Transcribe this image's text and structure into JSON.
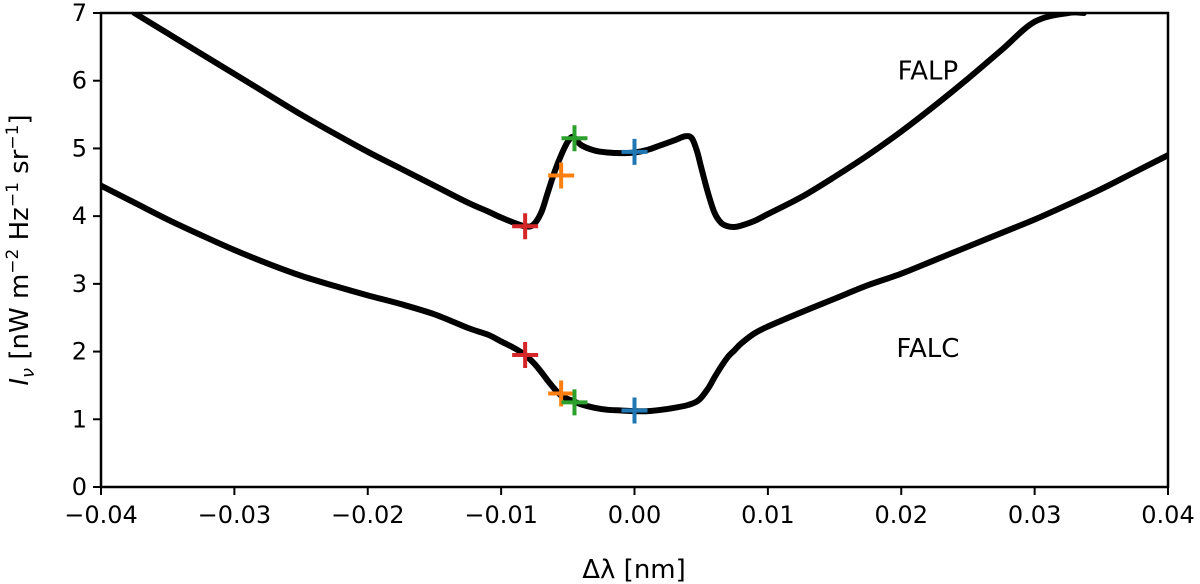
{
  "chart_data": {
    "type": "line",
    "title": "",
    "xlabel": "Δλ [nm]",
    "ylabel": {
      "symbol": "I",
      "subscript": "ν",
      "units_prefix": " [nW m",
      "exp1": "−2",
      "units_mid": " Hz",
      "exp2": "−1",
      "units_mid2": " sr",
      "exp3": "−1",
      "units_suffix": "]"
    },
    "xlim": [
      -0.04,
      0.04
    ],
    "ylim": [
      0,
      7
    ],
    "xticks": [
      -0.04,
      -0.03,
      -0.02,
      -0.01,
      0.0,
      0.01,
      0.02,
      0.03,
      0.04
    ],
    "xtick_labels": [
      "−0.04",
      "−0.03",
      "−0.02",
      "−0.01",
      "0.00",
      "0.01",
      "0.02",
      "0.03",
      "0.04"
    ],
    "yticks": [
      0,
      1,
      2,
      3,
      4,
      5,
      6,
      7
    ],
    "ytick_labels": [
      "0",
      "1",
      "2",
      "3",
      "4",
      "5",
      "6",
      "7"
    ],
    "series": [
      {
        "name": "FALP",
        "color": "#000000",
        "x": [
          -0.0375,
          -0.035,
          -0.0325,
          -0.03,
          -0.0275,
          -0.025,
          -0.0225,
          -0.02,
          -0.0175,
          -0.015,
          -0.0125,
          -0.011,
          -0.01,
          -0.009,
          -0.0082,
          -0.0076,
          -0.007,
          -0.0065,
          -0.006,
          -0.0055,
          -0.005,
          -0.0046,
          -0.004,
          -0.003,
          -0.002,
          -0.001,
          0.0,
          0.001,
          0.002,
          0.003,
          0.0038,
          0.0043,
          0.0047,
          0.005,
          0.0055,
          0.006,
          0.0065,
          0.007,
          0.0075,
          0.008,
          0.009,
          0.01,
          0.0125,
          0.015,
          0.0175,
          0.02,
          0.0225,
          0.025,
          0.0275,
          0.03,
          0.0325,
          0.0337
        ],
        "y": [
          7.0,
          6.7,
          6.4,
          6.1,
          5.8,
          5.5,
          5.22,
          4.95,
          4.7,
          4.45,
          4.2,
          4.07,
          3.98,
          3.9,
          3.85,
          3.87,
          4.05,
          4.35,
          4.65,
          4.9,
          5.1,
          5.17,
          5.05,
          4.97,
          4.94,
          4.93,
          4.94,
          4.98,
          5.05,
          5.12,
          5.18,
          5.15,
          4.95,
          4.72,
          4.35,
          4.05,
          3.9,
          3.85,
          3.84,
          3.86,
          3.93,
          4.03,
          4.28,
          4.58,
          4.9,
          5.25,
          5.63,
          6.03,
          6.45,
          6.87,
          7.0,
          7.0
        ]
      },
      {
        "name": "FALC",
        "color": "#000000",
        "x": [
          -0.04,
          -0.0375,
          -0.035,
          -0.0325,
          -0.03,
          -0.0275,
          -0.025,
          -0.0225,
          -0.02,
          -0.0175,
          -0.015,
          -0.0125,
          -0.011,
          -0.01,
          -0.009,
          -0.0082,
          -0.0075,
          -0.007,
          -0.0065,
          -0.006,
          -0.0055,
          -0.005,
          -0.0046,
          -0.004,
          -0.003,
          -0.002,
          -0.001,
          0.0,
          0.001,
          0.002,
          0.003,
          0.004,
          0.0048,
          0.0055,
          0.006,
          0.0065,
          0.007,
          0.0075,
          0.008,
          0.009,
          0.01,
          0.0125,
          0.015,
          0.0175,
          0.02,
          0.0225,
          0.025,
          0.0275,
          0.03,
          0.0325,
          0.035,
          0.0375,
          0.04
        ],
        "y": [
          4.45,
          4.2,
          3.95,
          3.72,
          3.5,
          3.3,
          3.12,
          2.97,
          2.83,
          2.7,
          2.55,
          2.35,
          2.25,
          2.15,
          2.05,
          1.95,
          1.82,
          1.7,
          1.57,
          1.45,
          1.35,
          1.3,
          1.27,
          1.22,
          1.17,
          1.14,
          1.13,
          1.12,
          1.12,
          1.14,
          1.17,
          1.21,
          1.28,
          1.45,
          1.62,
          1.78,
          1.92,
          2.02,
          2.12,
          2.27,
          2.37,
          2.58,
          2.78,
          2.98,
          3.15,
          3.35,
          3.55,
          3.75,
          3.95,
          4.17,
          4.4,
          4.65,
          4.9
        ]
      }
    ],
    "markers": [
      {
        "series": "FALP",
        "x": -0.0082,
        "y": 3.85,
        "color": "#d62728"
      },
      {
        "series": "FALP",
        "x": -0.0055,
        "y": 4.6,
        "color": "#ff7f0e"
      },
      {
        "series": "FALP",
        "x": -0.0045,
        "y": 5.15,
        "color": "#2ca02c"
      },
      {
        "series": "FALP",
        "x": 0.0,
        "y": 4.95,
        "color": "#1f77b4"
      },
      {
        "series": "FALC",
        "x": -0.0082,
        "y": 1.95,
        "color": "#d62728"
      },
      {
        "series": "FALC",
        "x": -0.0055,
        "y": 1.38,
        "color": "#ff7f0e"
      },
      {
        "series": "FALC",
        "x": -0.0045,
        "y": 1.25,
        "color": "#2ca02c"
      },
      {
        "series": "FALC",
        "x": 0.0,
        "y": 1.13,
        "color": "#1f77b4"
      }
    ],
    "annotations": [
      {
        "text": "FALP",
        "x": 0.022,
        "y": 6.15
      },
      {
        "text": "FALC",
        "x": 0.022,
        "y": 2.05
      }
    ],
    "grid": false,
    "legend": "none"
  }
}
